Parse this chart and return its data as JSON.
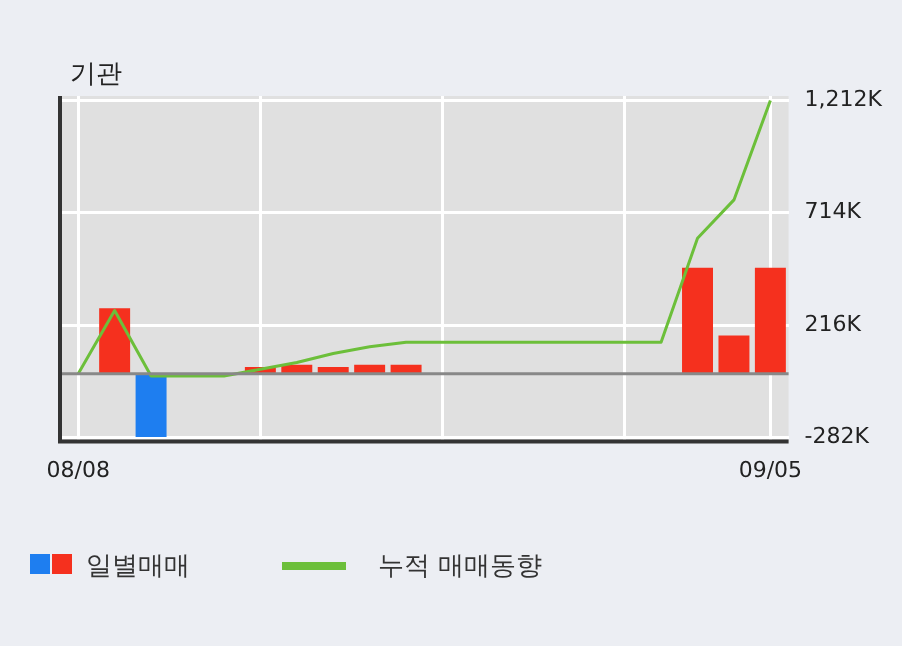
{
  "chart_data": {
    "type": "bar",
    "title": "기관",
    "categories": [
      "08/08",
      null,
      null,
      null,
      null,
      null,
      null,
      null,
      null,
      null,
      null,
      null,
      null,
      null,
      null,
      null,
      null,
      null,
      null,
      "09/05"
    ],
    "series": [
      {
        "name": "일별매매",
        "colors": [
          "#f5301e",
          "#f5301e",
          "#1e7ef0",
          "#f5301e",
          "#f5301e",
          "#f5301e",
          "#f5301e",
          "#f5301e",
          "#f5301e",
          "#f5301e",
          "#f5301e",
          "#f5301e",
          "#f5301e",
          "#f5301e",
          "#f5301e",
          "#f5301e",
          "#f5301e",
          "#f5301e",
          "#f5301e",
          "#f5301e"
        ],
        "values": [
          0,
          290,
          -280,
          0,
          0,
          30,
          40,
          30,
          40,
          40,
          0,
          0,
          0,
          0,
          0,
          0,
          0,
          470,
          170,
          470
        ]
      },
      {
        "type": "line",
        "name": "누적 매매동향",
        "color": "#6cbf3a",
        "values": [
          0,
          280,
          -10,
          -10,
          -10,
          20,
          50,
          90,
          120,
          140,
          140,
          140,
          140,
          140,
          140,
          140,
          140,
          600,
          770,
          1210
        ]
      }
    ],
    "ylim": [
      -300,
      1230
    ],
    "yticks": [
      {
        "value": 1212,
        "label": "1,212K"
      },
      {
        "value": 714,
        "label": "714K"
      },
      {
        "value": 216,
        "label": "216K"
      },
      {
        "value": -282,
        "label": "-282K"
      }
    ],
    "grid": true,
    "legend": "bottom",
    "marker": "none",
    "line_style": "solid"
  }
}
